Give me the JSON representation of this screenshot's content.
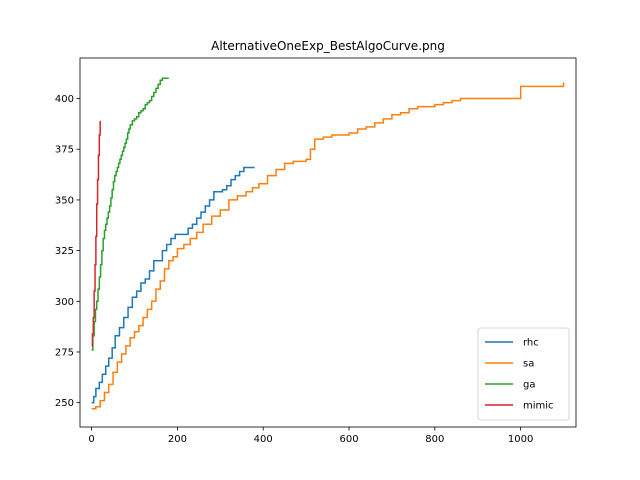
{
  "chart_data": {
    "type": "line",
    "title": "AlternativeOneExp_BestAlgoCurve.png",
    "xlabel": "",
    "ylabel": "",
    "xlim": [
      -27,
      1129
    ],
    "ylim": [
      238,
      420
    ],
    "xticks": [
      0,
      200,
      400,
      600,
      800,
      1000
    ],
    "yticks": [
      250,
      275,
      300,
      325,
      350,
      375,
      400
    ],
    "grid": false,
    "legend": {
      "position": "lower-right"
    },
    "series": [
      {
        "name": "rhc",
        "color": "#1f77b4",
        "x": [
          0,
          5,
          10,
          18,
          25,
          33,
          40,
          48,
          55,
          65,
          75,
          85,
          95,
          105,
          115,
          125,
          135,
          145,
          155,
          165,
          175,
          185,
          195,
          210,
          225,
          235,
          245,
          255,
          265,
          275,
          285,
          295,
          305,
          315,
          325,
          335,
          345,
          355,
          365,
          380
        ],
        "y": [
          250,
          253,
          257,
          260,
          264,
          268,
          272,
          277,
          283,
          287,
          292,
          297,
          302,
          305,
          309,
          311,
          315,
          320,
          320,
          325,
          328,
          331,
          333,
          333,
          336,
          338,
          341,
          344,
          347,
          350,
          354,
          354,
          355,
          357,
          360,
          362,
          364,
          366,
          366,
          366
        ]
      },
      {
        "name": "sa",
        "color": "#ff7f0e",
        "x": [
          0,
          10,
          20,
          30,
          40,
          50,
          60,
          70,
          80,
          90,
          100,
          110,
          120,
          130,
          140,
          150,
          160,
          170,
          180,
          190,
          200,
          215,
          230,
          245,
          260,
          280,
          300,
          320,
          340,
          360,
          375,
          390,
          410,
          430,
          450,
          470,
          490,
          500,
          510,
          520,
          540,
          560,
          580,
          600,
          620,
          640,
          660,
          680,
          700,
          720,
          740,
          760,
          780,
          800,
          820,
          840,
          860,
          900,
          960,
          1000,
          1040,
          1080,
          1100
        ],
        "y": [
          247,
          248,
          251,
          255,
          259,
          265,
          270,
          274,
          278,
          282,
          285,
          288,
          292,
          296,
          300,
          306,
          310,
          316,
          320,
          322,
          326,
          328,
          331,
          334,
          338,
          342,
          345,
          350,
          352,
          354,
          356,
          358,
          362,
          365,
          368,
          369,
          369,
          370,
          375,
          380,
          381,
          382,
          382,
          383,
          385,
          386,
          388,
          390,
          392,
          393,
          395,
          396,
          396,
          397,
          398,
          399,
          400,
          400,
          400,
          406,
          406,
          406,
          408
        ]
      },
      {
        "name": "ga",
        "color": "#2ca02c",
        "x": [
          0,
          3,
          6,
          9,
          12,
          15,
          18,
          21,
          24,
          27,
          30,
          33,
          36,
          39,
          42,
          45,
          48,
          51,
          54,
          57,
          60,
          63,
          66,
          69,
          72,
          75,
          78,
          81,
          84,
          87,
          90,
          95,
          100,
          105,
          110,
          115,
          120,
          125,
          130,
          135,
          140,
          145,
          150,
          155,
          160,
          165,
          170,
          180
        ],
        "y": [
          276,
          283,
          290,
          296,
          300,
          306,
          312,
          318,
          325,
          331,
          335,
          338,
          341,
          344,
          347,
          351,
          355,
          359,
          362,
          364,
          366,
          368,
          370,
          372,
          374,
          376,
          378,
          380,
          383,
          385,
          387,
          389,
          390,
          391,
          393,
          394,
          395,
          397,
          398,
          399,
          401,
          403,
          405,
          407,
          409,
          410,
          410,
          410
        ]
      },
      {
        "name": "mimic",
        "color": "#d62728",
        "x": [
          0,
          2,
          4,
          6,
          8,
          10,
          12,
          14,
          16,
          18,
          20
        ],
        "y": [
          278,
          284,
          292,
          305,
          318,
          332,
          348,
          360,
          372,
          382,
          389
        ]
      }
    ]
  }
}
